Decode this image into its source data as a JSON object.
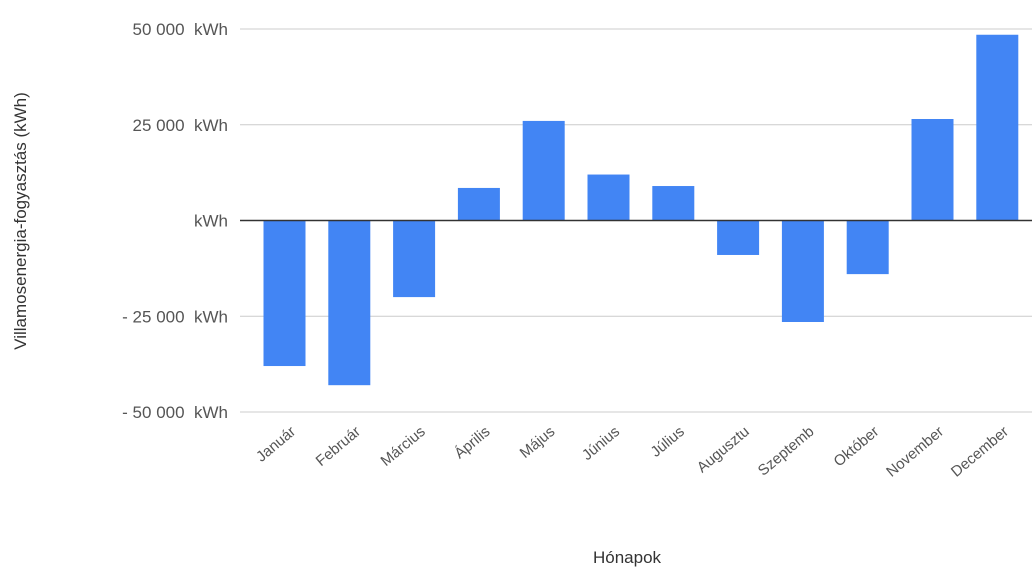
{
  "chart_data": {
    "type": "bar",
    "categories": [
      "Január",
      "Február",
      "Március",
      "Április",
      "Május",
      "Június",
      "Július",
      "Augusztu",
      "Szeptemb",
      "Október",
      "November",
      "December"
    ],
    "series": [
      {
        "values": [
          -38000,
          -43000,
          -20000,
          8500,
          26000,
          12000,
          9000,
          -9000,
          -26500,
          -14000,
          26500,
          48500
        ],
        "color": "#4285f4"
      }
    ],
    "ylim": [
      -50000,
      50000
    ],
    "yticks": [
      50000,
      25000,
      0,
      -25000,
      -50000
    ],
    "ytick_labels": [
      "50 000  kWh",
      "25 000  kWh",
      "kWh",
      "- 25 000  kWh",
      "- 50 000  kWh"
    ],
    "xlabel": "Hónapok",
    "ylabel": "Villamosenergia-fogyasztás (kWh)",
    "grid": true,
    "legend": "none"
  }
}
